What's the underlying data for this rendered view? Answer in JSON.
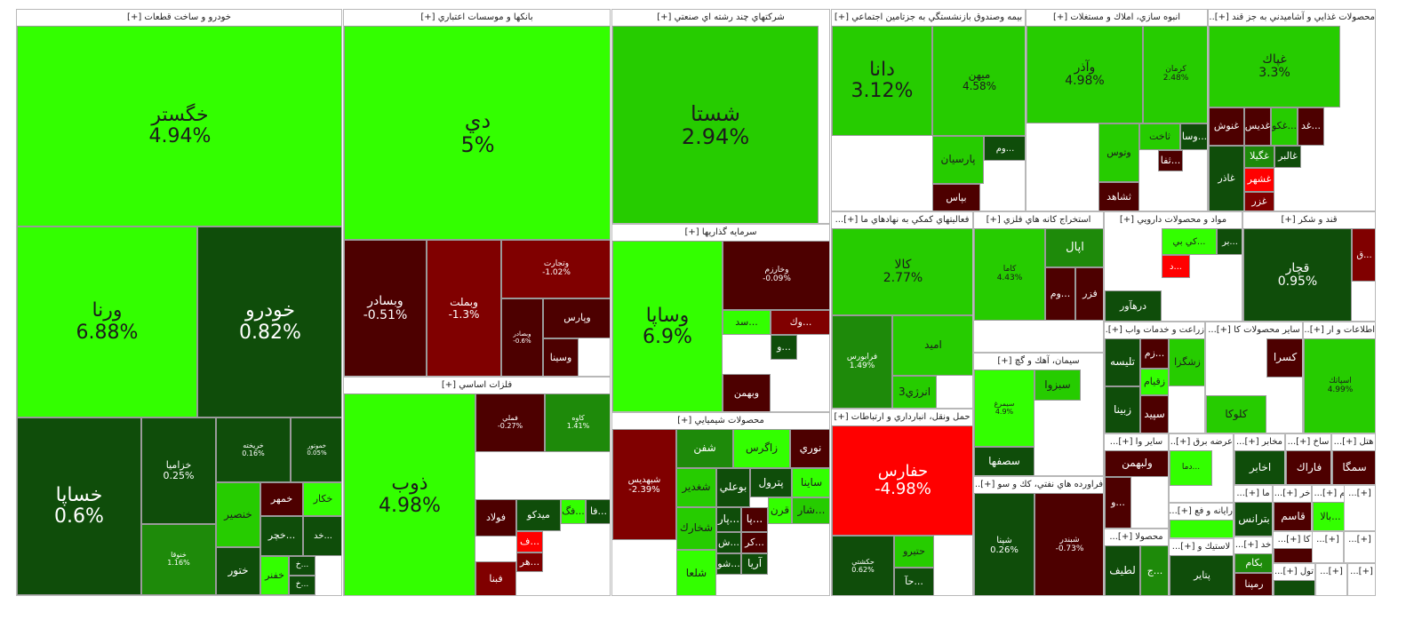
{
  "colors": {
    "bright_green": "#33ff00",
    "green": "#26cc00",
    "mid_green": "#1e8a0a",
    "dark_green": "#0f4d0a",
    "dark_red": "#4d0000",
    "red": "#800000",
    "bright_red": "#ff0000",
    "blank": "#ffffff"
  },
  "chart_data": {
    "type": "treemap",
    "sectors": [
      {
        "title": "خودرو و ساخت قطعات [+]",
        "stocks": [
          {
            "name": "خگستر",
            "change": "4.94%",
            "color": "bright_green"
          },
          {
            "name": "ورنا",
            "change": "6.88%",
            "color": "bright_green"
          },
          {
            "name": "خودرو",
            "change": "0.82%",
            "color": "dark_green"
          },
          {
            "name": "خساپا",
            "change": "0.6%",
            "color": "dark_green"
          },
          {
            "name": "خزاميا",
            "change": "0.25%",
            "color": "dark_green"
          },
          {
            "name": "خريخته",
            "change": "0.16%",
            "color": "dark_green"
          },
          {
            "name": "خموتور",
            "change": "0.05%",
            "color": "dark_green"
          },
          {
            "name": "خنوقا",
            "change": "1.16%",
            "color": "mid_green"
          },
          {
            "name": "خنصير",
            "change": "",
            "color": "green"
          },
          {
            "name": "خمهر",
            "change": "",
            "color": "dark_red"
          },
          {
            "name": "خكار",
            "change": "",
            "color": "bright_green"
          },
          {
            "name": "...خچر",
            "change": "",
            "color": "dark_green"
          },
          {
            "name": "...خد",
            "change": "",
            "color": "dark_green"
          },
          {
            "name": "ختور",
            "change": "",
            "color": "dark_green"
          },
          {
            "name": "خفنر",
            "change": "",
            "color": "bright_green"
          },
          {
            "name": "...خ",
            "change": "",
            "color": "dark_green"
          },
          {
            "name": "...خ",
            "change": "",
            "color": "dark_green"
          }
        ]
      },
      {
        "title": "بانكها و موسسات اعتباري [+]",
        "stocks": [
          {
            "name": "دي",
            "change": "5%",
            "color": "bright_green"
          },
          {
            "name": "وبسادر",
            "change": "-0.51%",
            "color": "dark_red"
          },
          {
            "name": "وبملت",
            "change": "-1.3%",
            "color": "red"
          },
          {
            "name": "وتجارت",
            "change": "-1.02%",
            "color": "red"
          },
          {
            "name": "وبصادر",
            "change": "-0.6%",
            "color": "dark_red"
          },
          {
            "name": "وپارس",
            "change": "",
            "color": "dark_red"
          },
          {
            "name": "وسينا",
            "change": "",
            "color": "dark_red"
          }
        ]
      },
      {
        "title": "شركتهاي چند رشته اي صنعتي [+]",
        "stocks": [
          {
            "name": "شستا",
            "change": "2.94%",
            "color": "green"
          }
        ]
      },
      {
        "title": "سرمايه گذاريها [+]",
        "stocks": [
          {
            "name": "وساپا",
            "change": "6.9%",
            "color": "bright_green"
          },
          {
            "name": "وخارزم",
            "change": "-0.09%",
            "color": "dark_red"
          },
          {
            "name": "...سد",
            "change": "",
            "color": "bright_green"
          },
          {
            "name": "...وك",
            "change": "",
            "color": "red"
          },
          {
            "name": "...و",
            "change": "",
            "color": "dark_green"
          },
          {
            "name": "وبهمن",
            "change": "",
            "color": "dark_red"
          }
        ]
      },
      {
        "title": "بيمه وصندوق بازنشستگي به جزتامين اجتماعي [+]",
        "stocks": [
          {
            "name": "دانا",
            "change": "3.12%",
            "color": "green"
          },
          {
            "name": "ميهن",
            "change": "4.58%",
            "color": "green"
          },
          {
            "name": "پارسيان",
            "change": "",
            "color": "green"
          },
          {
            "name": "...وم",
            "change": "",
            "color": "dark_green"
          },
          {
            "name": "بپاس",
            "change": "",
            "color": "dark_red"
          }
        ]
      },
      {
        "title": "انبوه سازي، املاك و مستغلات [+]",
        "stocks": [
          {
            "name": "وآذر",
            "change": "4.98%",
            "color": "green"
          },
          {
            "name": "كرمان",
            "change": "2.48%",
            "color": "green"
          },
          {
            "name": "وتوس",
            "change": "",
            "color": "green"
          },
          {
            "name": "ثاخت",
            "change": "",
            "color": "green"
          },
          {
            "name": "...وسا",
            "change": "",
            "color": "dark_green"
          },
          {
            "name": "...ثفا",
            "change": "",
            "color": "dark_red"
          },
          {
            "name": "ثشاهد",
            "change": "",
            "color": "dark_red"
          }
        ]
      },
      {
        "title": "محصولات غذايي و آشاميدني به جز قند [+]...",
        "stocks": [
          {
            "name": "غپاك",
            "change": "3.3%",
            "color": "green"
          },
          {
            "name": "غنوش",
            "change": "",
            "color": "dark_red"
          },
          {
            "name": "غديس",
            "change": "",
            "color": "dark_red"
          },
          {
            "name": "...غكو",
            "change": "",
            "color": "green"
          },
          {
            "name": "...غد",
            "change": "",
            "color": "dark_red"
          },
          {
            "name": "غگيلا",
            "change": "",
            "color": "mid_green"
          },
          {
            "name": "غشهر",
            "change": "",
            "color": "bright_red"
          },
          {
            "name": "غالبر",
            "change": "",
            "color": "dark_green"
          },
          {
            "name": "غاذر",
            "change": "",
            "color": "dark_green"
          },
          {
            "name": "غزر",
            "change": "",
            "color": "red"
          }
        ]
      },
      {
        "title": "فلزات اساسي [+]",
        "stocks": [
          {
            "name": "ذوب",
            "change": "4.98%",
            "color": "bright_green"
          },
          {
            "name": "فملي",
            "change": "-0.27%",
            "color": "dark_red"
          },
          {
            "name": "كاوه",
            "change": "1.41%",
            "color": "mid_green"
          },
          {
            "name": "فولاد",
            "change": "",
            "color": "dark_red"
          },
          {
            "name": "ميدكو",
            "change": "",
            "color": "dark_green"
          },
          {
            "name": "...فگ",
            "change": "",
            "color": "bright_green"
          },
          {
            "name": "...فا",
            "change": "",
            "color": "dark_green"
          },
          {
            "name": "...ف",
            "change": "",
            "color": "bright_red"
          },
          {
            "name": "...هر",
            "change": "",
            "color": "red"
          },
          {
            "name": "فبنا",
            "change": "",
            "color": "red"
          }
        ]
      },
      {
        "title": "محصولات شيميايي [+]",
        "stocks": [
          {
            "name": "شبهديس",
            "change": "-2.39%",
            "color": "red"
          },
          {
            "name": "شفن",
            "change": "",
            "color": "mid_green"
          },
          {
            "name": "زاگرس",
            "change": "",
            "color": "bright_green"
          },
          {
            "name": "نوري",
            "change": "",
            "color": "dark_red"
          },
          {
            "name": "شغدير",
            "change": "",
            "color": "green"
          },
          {
            "name": "بوعلي",
            "change": "",
            "color": "dark_green"
          },
          {
            "name": "پترول",
            "change": "",
            "color": "dark_green"
          },
          {
            "name": "ساينا",
            "change": "",
            "color": "bright_green"
          },
          {
            "name": "شخارك",
            "change": "",
            "color": "green"
          },
          {
            "name": "...پار",
            "change": "",
            "color": "dark_green"
          },
          {
            "name": "...پا",
            "change": "",
            "color": "dark_red"
          },
          {
            "name": "قرن",
            "change": "",
            "color": "bright_green"
          },
          {
            "name": "...شار",
            "change": "",
            "color": "green"
          },
          {
            "name": "...ش",
            "change": "",
            "color": "dark_green"
          },
          {
            "name": "...كر",
            "change": "",
            "color": "dark_red"
          },
          {
            "name": "شلعا",
            "change": "",
            "color": "bright_green"
          },
          {
            "name": "...شو",
            "change": "",
            "color": "dark_green"
          },
          {
            "name": "آريا",
            "change": "",
            "color": "dark_green"
          }
        ]
      },
      {
        "title": "فعاليتهاي كمكي به نهادهاي ما [+]...",
        "stocks": [
          {
            "name": "كالا",
            "change": "2.77%",
            "color": "green"
          },
          {
            "name": "فرابورس",
            "change": "1.49%",
            "color": "mid_green"
          },
          {
            "name": "اميد",
            "change": "",
            "color": "green"
          },
          {
            "name": "انرژي3",
            "change": "",
            "color": "green"
          }
        ]
      },
      {
        "title": "حمل ونقل، انبارداري و ارتباطات [+]",
        "stocks": [
          {
            "name": "حفارس",
            "change": "-4.98%",
            "color": "bright_red"
          },
          {
            "name": "حكشتي",
            "change": "0.62%",
            "color": "dark_green"
          },
          {
            "name": "حتيرو",
            "change": "",
            "color": "green"
          },
          {
            "name": "...حآ",
            "change": "",
            "color": "dark_green"
          }
        ]
      },
      {
        "title": "استخراج كانه هاي فلزي [+]",
        "stocks": [
          {
            "name": "كاما",
            "change": "4.43%",
            "color": "green"
          },
          {
            "name": "اپال",
            "change": "",
            "color": "mid_green"
          },
          {
            "name": "...وم",
            "change": "",
            "color": "dark_red"
          },
          {
            "name": "فزر",
            "change": "",
            "color": "dark_red"
          }
        ]
      },
      {
        "title": "سيمان، آهك و گچ [+]",
        "stocks": [
          {
            "name": "سيمرغ",
            "change": "4.9%",
            "color": "bright_green"
          },
          {
            "name": "سبزوا",
            "change": "",
            "color": "green"
          },
          {
            "name": "سصفها",
            "change": "",
            "color": "dark_green"
          }
        ]
      },
      {
        "title": "فراورده هاي نفتي، كك و سو [+]...",
        "stocks": [
          {
            "name": "شپنا",
            "change": "0.26%",
            "color": "dark_green"
          },
          {
            "name": "شبندر",
            "change": "-0.73%",
            "color": "dark_red"
          }
        ]
      },
      {
        "title": "مواد و محصولات دارويي [+]",
        "stocks": [
          {
            "name": "...كي بي",
            "change": "",
            "color": "bright_green"
          },
          {
            "name": "...بر",
            "change": "",
            "color": "dark_green"
          },
          {
            "name": "...د",
            "change": "",
            "color": "bright_red"
          },
          {
            "name": "درهآور",
            "change": "",
            "color": "dark_green"
          }
        ]
      },
      {
        "title": "قند و شكر [+]",
        "stocks": [
          {
            "name": "قچار",
            "change": "0.95%",
            "color": "dark_green"
          },
          {
            "name": "...ق",
            "change": "",
            "color": "red"
          }
        ]
      },
      {
        "title": "زراعت و خدمات واب [+]...",
        "stocks": [
          {
            "name": "تليسه",
            "change": "",
            "color": "dark_green"
          },
          {
            "name": "...زم",
            "change": "",
            "color": "dark_red"
          },
          {
            "name": "زشگزا",
            "change": "",
            "color": "green"
          },
          {
            "name": "زقيام",
            "change": "",
            "color": "bright_green"
          },
          {
            "name": "زبينا",
            "change": "",
            "color": "dark_green"
          },
          {
            "name": "سپيد",
            "change": "",
            "color": "dark_red"
          }
        ]
      },
      {
        "title": "ساير محصولات كا [+]...",
        "stocks": [
          {
            "name": "كسرا",
            "change": "",
            "color": "dark_red"
          },
          {
            "name": "كلوكا",
            "change": "",
            "color": "green"
          }
        ]
      },
      {
        "title": "اطلاعات و ار [+]...",
        "stocks": [
          {
            "name": "اسپاتك",
            "change": "4.99%",
            "color": "green"
          }
        ]
      },
      {
        "title": "ساير وا [+]...",
        "stocks": [
          {
            "name": "ولبهمن",
            "change": "",
            "color": "dark_red"
          },
          {
            "name": "...و",
            "change": "",
            "color": "dark_red"
          }
        ]
      },
      {
        "title": "عرضه برق [+]...",
        "stocks": [
          {
            "name": "...دما",
            "change": "",
            "color": "bright_green"
          }
        ]
      },
      {
        "title": "مخابر [+]...",
        "stocks": [
          {
            "name": "اخابر",
            "change": "",
            "color": "dark_green"
          }
        ]
      },
      {
        "title": "ساخ [+]...",
        "stocks": [
          {
            "name": "فاراك",
            "change": "",
            "color": "dark_red"
          }
        ]
      },
      {
        "title": "هتل [+]...",
        "stocks": [
          {
            "name": "سمگا",
            "change": "",
            "color": "dark_red"
          }
        ]
      },
      {
        "title": "محصولا [+]...",
        "stocks": [
          {
            "name": "لطيف",
            "change": "",
            "color": "dark_green"
          },
          {
            "name": "...ج",
            "change": "",
            "color": "mid_green"
          }
        ]
      },
      {
        "title": "رايانه و فع [+]...",
        "stocks": [
          {
            "name": "",
            "change": "",
            "color": "bright_green"
          }
        ]
      },
      {
        "title": "لاستيك و [+]...",
        "stocks": [
          {
            "name": "پتاير",
            "change": "",
            "color": "dark_green"
          }
        ]
      },
      {
        "title": "ما [+]...",
        "stocks": [
          {
            "name": "بترانس",
            "change": "",
            "color": "dark_green"
          }
        ]
      },
      {
        "title": "خر [+]...",
        "stocks": [
          {
            "name": "قاسم",
            "change": "",
            "color": "dark_red"
          }
        ]
      },
      {
        "title": "م [+]...",
        "stocks": [
          {
            "name": "...بالا",
            "change": "",
            "color": "bright_green"
          }
        ]
      },
      {
        "title": "خد [+]...",
        "stocks": [
          {
            "name": "بكام",
            "change": "",
            "color": "mid_green"
          },
          {
            "name": "رمپنا",
            "change": "",
            "color": "dark_red"
          }
        ]
      },
      {
        "title": "كا [+]...",
        "stocks": [
          {
            "name": "",
            "change": "",
            "color": "dark_red"
          }
        ]
      },
      {
        "title": "تول [+]...",
        "stocks": [
          {
            "name": "",
            "change": "",
            "color": "dark_green"
          }
        ]
      },
      {
        "title": "[+]...",
        "stocks": []
      },
      {
        "title": "[+]...",
        "stocks": []
      },
      {
        "title": "[+]...",
        "stocks": []
      },
      {
        "title": "[+]...",
        "stocks": []
      },
      {
        "title": "[+]...",
        "stocks": []
      }
    ]
  }
}
